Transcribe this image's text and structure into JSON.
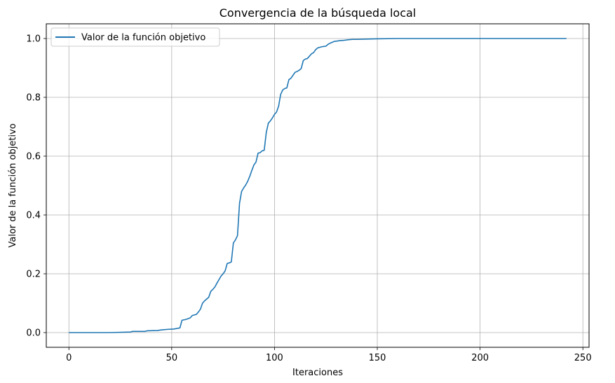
{
  "chart_data": {
    "type": "line",
    "title": "Convergencia de la búsqueda local",
    "xlabel": "Iteraciones",
    "ylabel": "Valor de la función objetivo",
    "xlim": [
      -11,
      253
    ],
    "ylim": [
      -0.05,
      1.05
    ],
    "xticks": [
      0,
      50,
      100,
      150,
      200,
      250
    ],
    "yticks": [
      0.0,
      0.2,
      0.4,
      0.6,
      0.8,
      1.0
    ],
    "ytick_labels": [
      "0.0",
      "0.2",
      "0.4",
      "0.6",
      "0.8",
      "1.0"
    ],
    "grid": true,
    "legend_position": "top-left",
    "series": [
      {
        "name": "Valor de la función objetivo",
        "color": "#1f77b4",
        "x": [
          0,
          20,
          30,
          31,
          37,
          38,
          43,
          45,
          48,
          51,
          54,
          55,
          57,
          59,
          60,
          62,
          63,
          64,
          65,
          66,
          68,
          69,
          70,
          71,
          72,
          73,
          74,
          75,
          76,
          77,
          78,
          79,
          80,
          81,
          82,
          83,
          84,
          85,
          86,
          87,
          88,
          89,
          90,
          91,
          92,
          93,
          94,
          95,
          96,
          97,
          98,
          99,
          100,
          101,
          102,
          103,
          104,
          105,
          106,
          107,
          108,
          109,
          110,
          111,
          112,
          113,
          114,
          115,
          116,
          117,
          118,
          119,
          120,
          121,
          122,
          123,
          125,
          126,
          127,
          128,
          129,
          130,
          132,
          134,
          136,
          138,
          140,
          145,
          150,
          160,
          170,
          180,
          200,
          242
        ],
        "values": [
          0.0,
          0.0,
          0.002,
          0.004,
          0.004,
          0.006,
          0.007,
          0.009,
          0.011,
          0.012,
          0.016,
          0.042,
          0.045,
          0.05,
          0.058,
          0.062,
          0.07,
          0.08,
          0.1,
          0.108,
          0.12,
          0.14,
          0.147,
          0.155,
          0.168,
          0.18,
          0.192,
          0.2,
          0.21,
          0.235,
          0.237,
          0.24,
          0.305,
          0.315,
          0.33,
          0.44,
          0.48,
          0.492,
          0.502,
          0.515,
          0.532,
          0.552,
          0.57,
          0.58,
          0.61,
          0.612,
          0.618,
          0.62,
          0.68,
          0.712,
          0.72,
          0.73,
          0.742,
          0.75,
          0.77,
          0.81,
          0.825,
          0.83,
          0.832,
          0.86,
          0.865,
          0.875,
          0.885,
          0.888,
          0.892,
          0.898,
          0.925,
          0.93,
          0.932,
          0.94,
          0.948,
          0.952,
          0.962,
          0.968,
          0.97,
          0.972,
          0.974,
          0.98,
          0.984,
          0.987,
          0.99,
          0.991,
          0.993,
          0.994,
          0.996,
          0.997,
          0.997,
          0.998,
          0.999,
          1.0,
          1.0,
          1.0,
          1.0,
          1.0
        ]
      }
    ]
  }
}
